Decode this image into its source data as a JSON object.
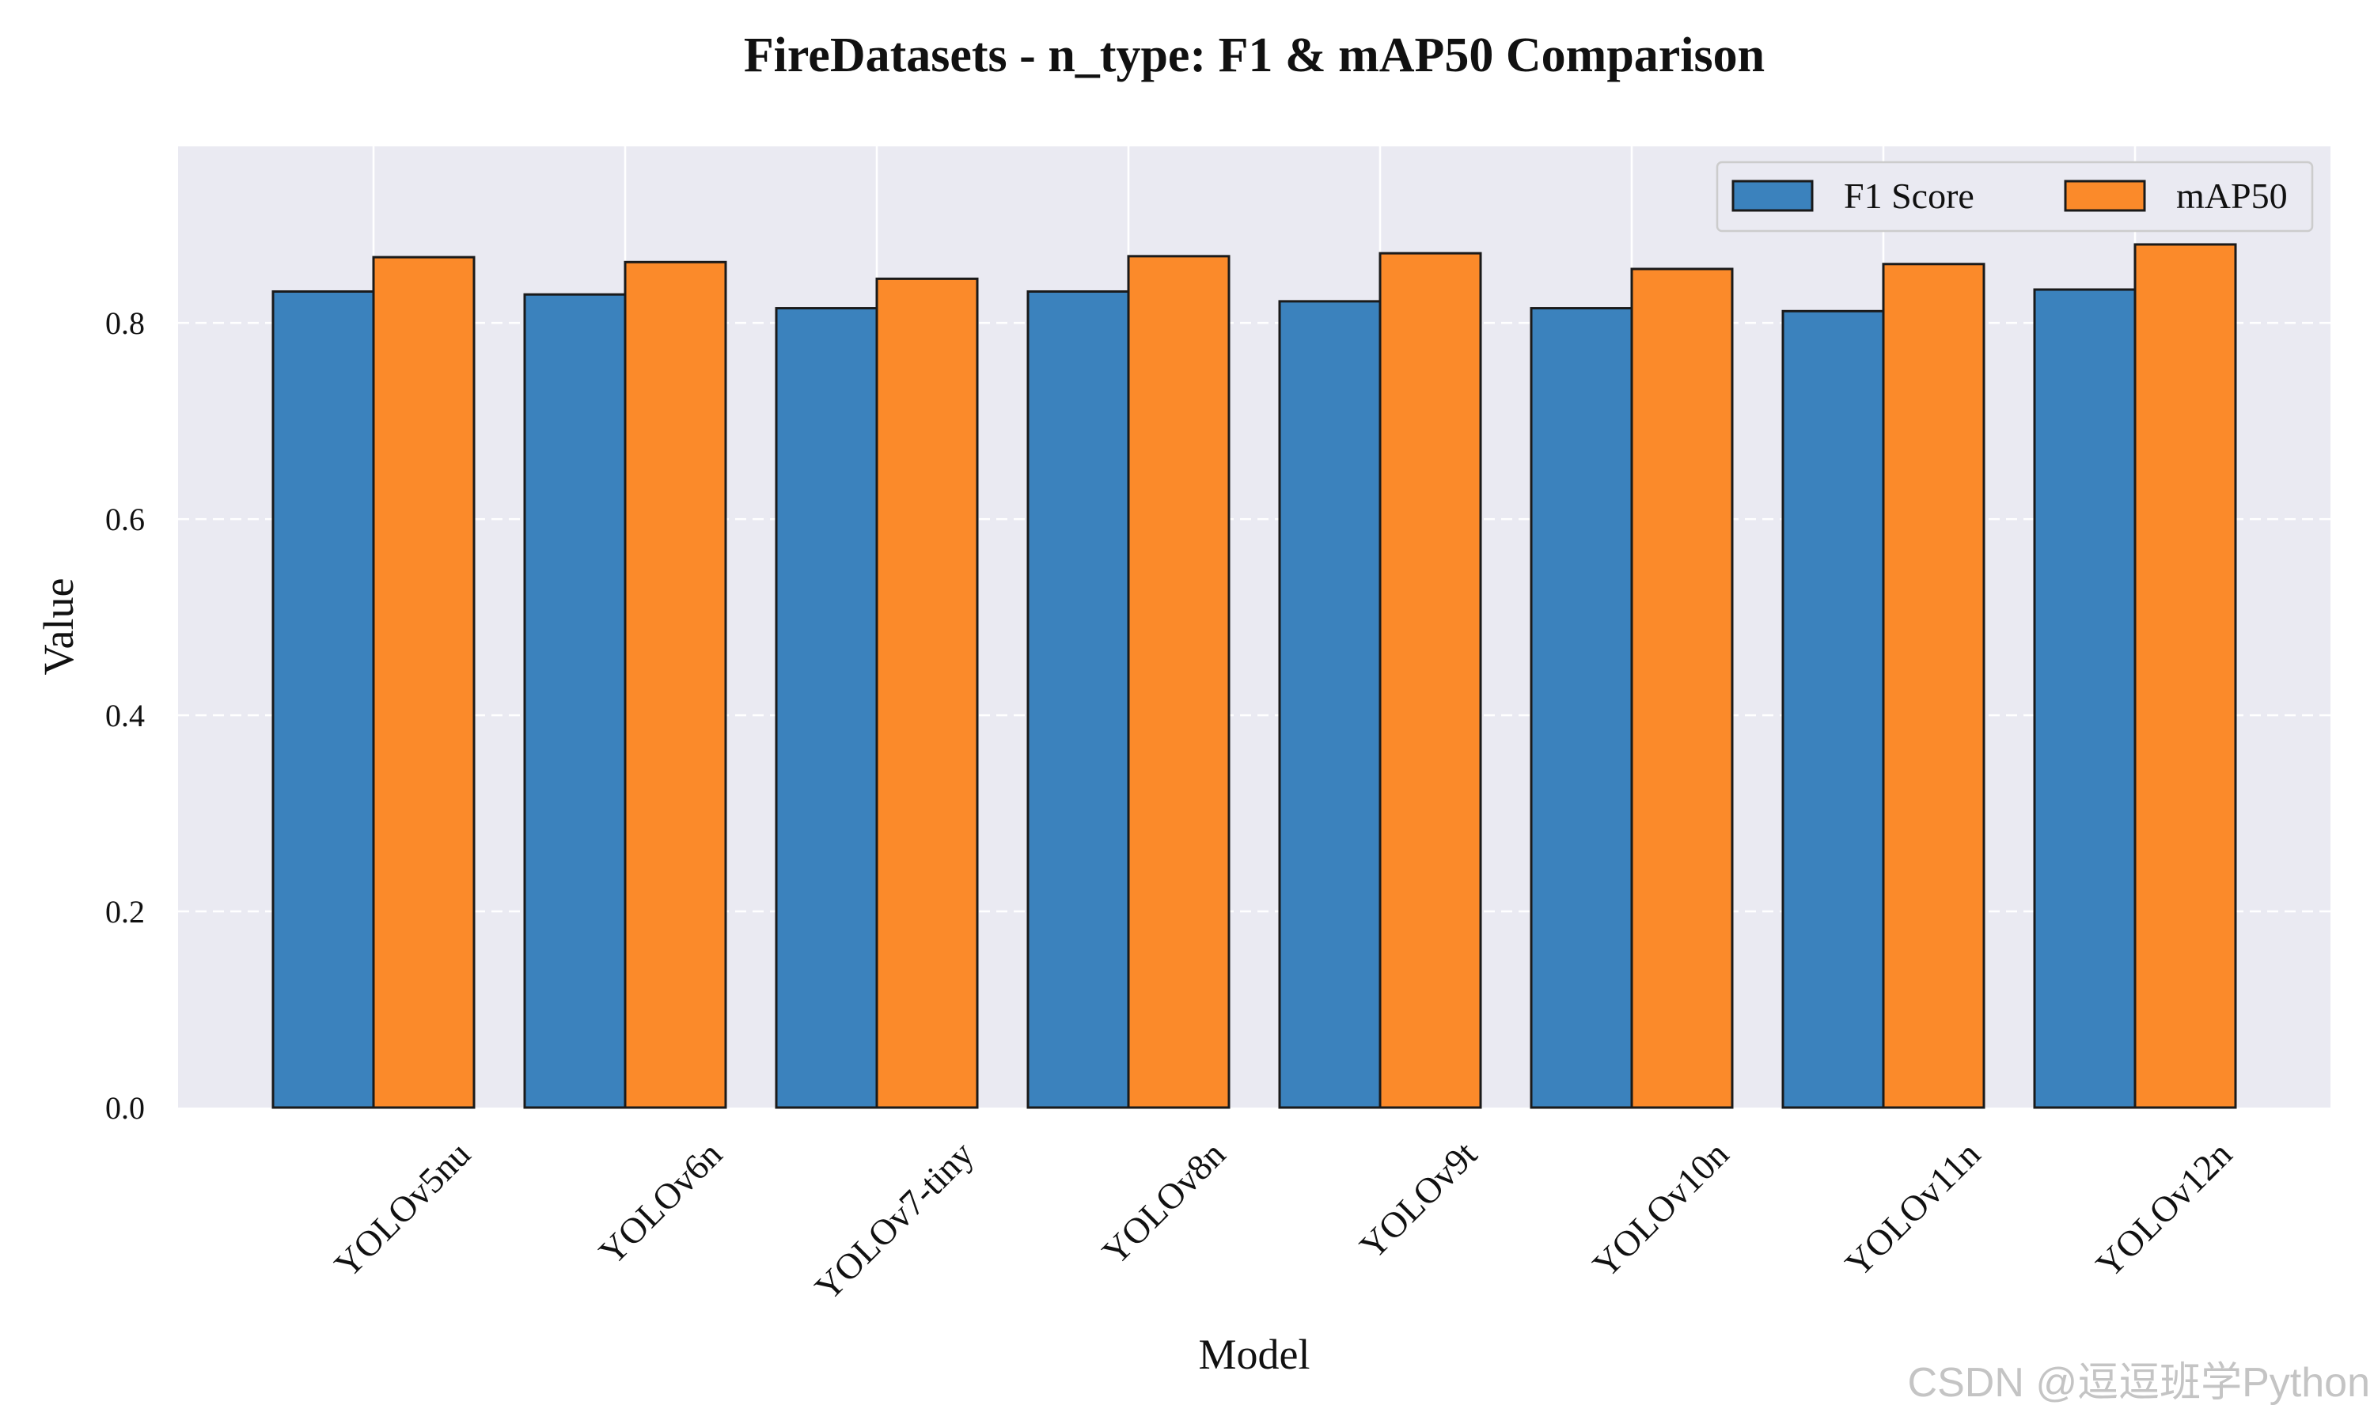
{
  "chart_data": {
    "type": "bar",
    "title": "FireDatasets - n_type: F1 & mAP50 Comparison",
    "xlabel": "Model",
    "ylabel": "Value",
    "categories": [
      "YOLOv5nu",
      "YOLOv6n",
      "YOLOv7-tiny",
      "YOLOv8n",
      "YOLOv9t",
      "YOLOv10n",
      "YOLOv11n",
      "YOLOv12n"
    ],
    "series": [
      {
        "name": "F1 Score",
        "color": "#3b82bd",
        "values": [
          0.832,
          0.829,
          0.815,
          0.832,
          0.822,
          0.815,
          0.812,
          0.834
        ]
      },
      {
        "name": "mAP50",
        "color": "#fb8a2a",
        "values": [
          0.867,
          0.862,
          0.845,
          0.868,
          0.871,
          0.855,
          0.86,
          0.88
        ]
      }
    ],
    "ylim": [
      0,
      0.98
    ],
    "yticks": [
      "0.0",
      "0.2",
      "0.4",
      "0.6",
      "0.8"
    ],
    "grid": true,
    "legend_position": "top-right",
    "background_color": "#eaeaf2"
  },
  "watermark": "CSDN @逗逗班学Python"
}
